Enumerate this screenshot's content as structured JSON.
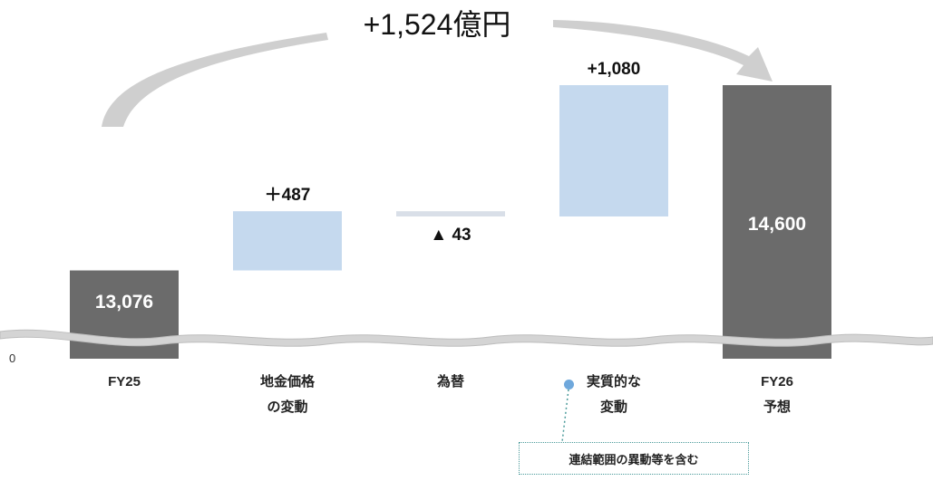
{
  "chart_data": {
    "type": "bar",
    "title": "",
    "xlabel": "",
    "ylabel": "",
    "axis_zero_label": "0",
    "broken_axis": true,
    "categories": [
      [
        "FY25"
      ],
      [
        "地金価格",
        "の変動"
      ],
      [
        "為替"
      ],
      [
        "実質的な",
        "変動"
      ],
      [
        "FY26",
        "予想"
      ]
    ],
    "steps": [
      {
        "kind": "total",
        "value": 13076,
        "label": "13,076"
      },
      {
        "kind": "delta",
        "value": 487,
        "label_prefix": "＋",
        "label": "487"
      },
      {
        "kind": "delta",
        "value": -43,
        "label_prefix": "▲ ",
        "label": "43"
      },
      {
        "kind": "delta",
        "value": 1080,
        "label_prefix": "",
        "label": "+1,080"
      },
      {
        "kind": "total",
        "value": 14600,
        "label": "14,600"
      }
    ],
    "total_change_label": "+1,524億円",
    "note": "連結範囲の異動等を含む",
    "colors": {
      "total": "#6b6b6b",
      "increase": "#c5d9ee",
      "decrease": "#d9dfe8",
      "arrow": "#cfcfcf",
      "break_band": "#d4d4d4",
      "note_border": "#4a9a9a",
      "note_dot": "#6fa8dc"
    }
  }
}
